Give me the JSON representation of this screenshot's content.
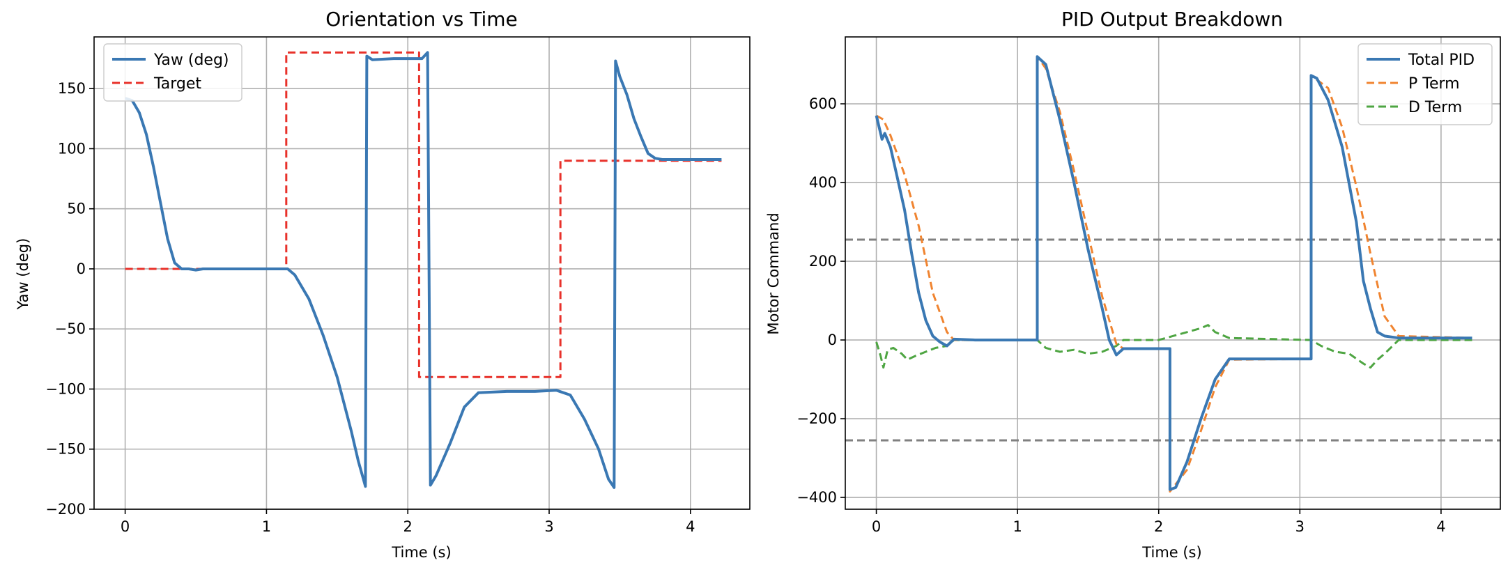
{
  "chart_data": [
    {
      "type": "line",
      "title": "Orientation vs Time",
      "xlabel": "Time (s)",
      "ylabel": "Yaw (deg)",
      "xlim": [
        -0.22,
        4.42
      ],
      "ylim": [
        -200,
        193
      ],
      "xticks": [
        0,
        1,
        2,
        3,
        4
      ],
      "yticks": [
        -200,
        -150,
        -100,
        -50,
        0,
        50,
        100,
        150
      ],
      "grid": true,
      "legend_position": "top-left",
      "series": [
        {
          "name": "Yaw (deg)",
          "color": "#3a78b3",
          "style": "solid",
          "x": [
            0,
            0.05,
            0.1,
            0.15,
            0.2,
            0.25,
            0.3,
            0.35,
            0.4,
            0.45,
            0.5,
            0.55,
            0.6,
            0.8,
            1.0,
            1.15,
            1.2,
            1.3,
            1.4,
            1.5,
            1.6,
            1.65,
            1.7,
            1.71,
            1.75,
            1.9,
            2.1,
            2.14,
            2.16,
            2.2,
            2.3,
            2.4,
            2.5,
            2.7,
            2.9,
            3.05,
            3.15,
            3.25,
            3.35,
            3.42,
            3.46,
            3.47,
            3.5,
            3.55,
            3.6,
            3.65,
            3.7,
            3.75,
            3.8,
            4.0,
            4.22
          ],
          "y": [
            142,
            140,
            130,
            112,
            85,
            55,
            25,
            5,
            0,
            0,
            -1,
            0,
            0,
            0,
            0,
            0,
            -5,
            -25,
            -55,
            -90,
            -135,
            -160,
            -181,
            177,
            174,
            175,
            175,
            180,
            -180,
            -172,
            -145,
            -115,
            -103,
            -102,
            -102,
            -101,
            -105,
            -125,
            -150,
            -175,
            -182,
            173,
            160,
            145,
            125,
            110,
            96,
            92,
            91,
            91,
            91
          ]
        },
        {
          "name": "Target",
          "color": "#e8312a",
          "style": "dashed",
          "x": [
            0,
            1.14,
            1.14,
            2.08,
            2.08,
            3.08,
            3.08,
            4.22
          ],
          "y": [
            0,
            0,
            180,
            180,
            -90,
            -90,
            90,
            90
          ]
        }
      ]
    },
    {
      "type": "line",
      "title": "PID Output Breakdown",
      "xlabel": "Time (s)",
      "ylabel": "Motor Command",
      "xlim": [
        -0.22,
        4.42
      ],
      "ylim": [
        -430,
        770
      ],
      "xticks": [
        0,
        1,
        2,
        3,
        4
      ],
      "yticks": [
        -400,
        -200,
        0,
        200,
        400,
        600
      ],
      "grid": true,
      "legend_position": "top-right",
      "reference_lines": [
        255,
        -255
      ],
      "series": [
        {
          "name": "Total PID",
          "color": "#3a78b3",
          "style": "solid",
          "x": [
            0,
            0.04,
            0.06,
            0.1,
            0.15,
            0.2,
            0.25,
            0.3,
            0.35,
            0.4,
            0.45,
            0.5,
            0.55,
            0.7,
            0.9,
            1.14,
            1.14,
            1.2,
            1.25,
            1.3,
            1.4,
            1.5,
            1.6,
            1.65,
            1.7,
            1.75,
            2.08,
            2.08,
            2.12,
            2.2,
            2.3,
            2.4,
            2.5,
            2.7,
            3.08,
            3.08,
            3.12,
            3.2,
            3.3,
            3.4,
            3.45,
            3.5,
            3.55,
            3.6,
            3.7,
            4.22
          ],
          "y": [
            570,
            510,
            525,
            490,
            410,
            330,
            220,
            120,
            50,
            10,
            -5,
            -15,
            2,
            0,
            0,
            0,
            720,
            700,
            630,
            560,
            400,
            230,
            80,
            0,
            -38,
            -22,
            -22,
            -380,
            -375,
            -310,
            -200,
            -100,
            -48,
            -48,
            -48,
            672,
            665,
            610,
            490,
            300,
            150,
            80,
            20,
            10,
            5,
            5
          ]
        },
        {
          "name": "P Term",
          "color": "#f08430",
          "style": "dashed",
          "x": [
            0,
            0.05,
            0.1,
            0.2,
            0.3,
            0.4,
            0.5,
            0.55,
            1.14,
            1.14,
            1.2,
            1.3,
            1.4,
            1.5,
            1.6,
            1.7,
            1.75,
            2.08,
            2.08,
            2.2,
            2.3,
            2.4,
            2.5,
            3.08,
            3.08,
            3.2,
            3.3,
            3.4,
            3.5,
            3.6,
            3.7,
            4.22
          ],
          "y": [
            570,
            560,
            520,
            420,
            290,
            120,
            20,
            0,
            0,
            720,
            690,
            580,
            430,
            270,
            110,
            -10,
            -22,
            -22,
            -385,
            -330,
            -230,
            -120,
            -50,
            -48,
            672,
            640,
            540,
            390,
            220,
            60,
            10,
            5
          ]
        },
        {
          "name": "D Term",
          "color": "#4ea542",
          "style": "dashed",
          "x": [
            0,
            0.03,
            0.05,
            0.08,
            0.12,
            0.18,
            0.22,
            0.28,
            0.35,
            0.42,
            0.5,
            0.55,
            1.14,
            1.2,
            1.3,
            1.4,
            1.5,
            1.6,
            1.7,
            1.75,
            2.0,
            2.1,
            2.2,
            2.3,
            2.35,
            2.4,
            2.5,
            3.08,
            3.15,
            3.25,
            3.35,
            3.45,
            3.5,
            3.55,
            3.6,
            3.7,
            4.22
          ],
          "y": [
            -5,
            -40,
            -70,
            -25,
            -20,
            -35,
            -50,
            -40,
            -30,
            -20,
            -15,
            0,
            0,
            -20,
            -30,
            -25,
            -35,
            -30,
            -15,
            0,
            0,
            10,
            20,
            30,
            38,
            20,
            5,
            0,
            -15,
            -30,
            -35,
            -60,
            -70,
            -50,
            -35,
            0,
            0
          ]
        }
      ]
    }
  ]
}
